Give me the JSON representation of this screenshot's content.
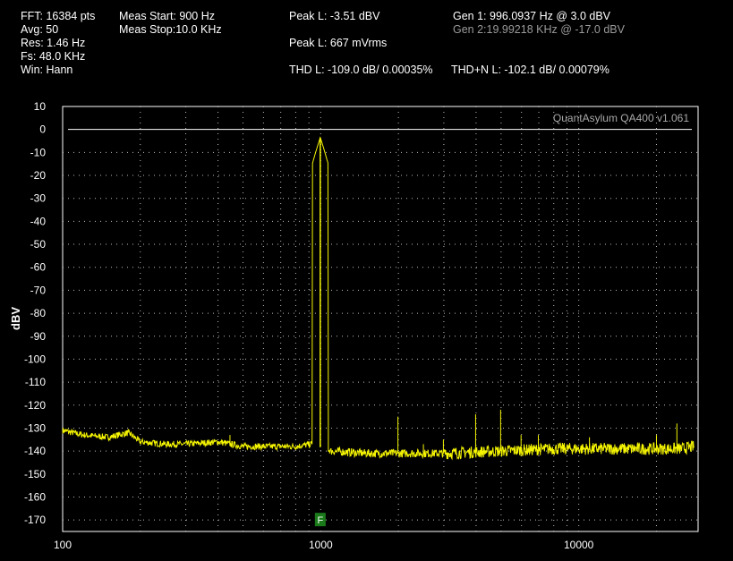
{
  "header": {
    "col1": [
      "FFT: 16384 pts",
      "Avg: 50",
      "Res: 1.46 Hz",
      "Fs: 48.0 KHz",
      "Win: Hann"
    ],
    "col2": [
      "Meas Start: 900 Hz",
      "Meas Stop:10.0 KHz"
    ],
    "peak_dbv": "Peak L: -3.51 dBV",
    "peak_mv": "Peak L: 667 mVrms",
    "thd": "THD L: -109.0 dB/ 0.00035%",
    "thdn": "THD+N L: -102.1 dB/ 0.00079%",
    "gen1": "Gen 1: 996.0937 Hz @ 3.0  dBV",
    "gen2": "Gen 2:19.99218 KHz @ -17.0  dBV"
  },
  "colors": {
    "trace": "#f5f500",
    "grid": "#bdbdbd",
    "marker": "#1a7a1a"
  },
  "chart_data": {
    "type": "line",
    "title": "",
    "watermark": "QuantAsylum QA400 v1.061",
    "ylabel": "dBV",
    "xlabel": "",
    "xscale": "log",
    "xlim": [
      100,
      29000
    ],
    "ylim": [
      -175,
      10
    ],
    "grid": true,
    "reference_line_y": 0,
    "x_tick_labels": [
      "100",
      "1000",
      "10000"
    ],
    "x_tick_values": [
      100,
      1000,
      10000
    ],
    "y_ticks": [
      10,
      0,
      -10,
      -20,
      -30,
      -40,
      -50,
      -60,
      -70,
      -80,
      -90,
      -100,
      -110,
      -120,
      -130,
      -140,
      -150,
      -160,
      -170
    ],
    "marker": {
      "label": "F",
      "x": 996,
      "y": -170
    },
    "series": [
      {
        "noise_floor": [
          [
            100,
            -131
          ],
          [
            120,
            -133
          ],
          [
            150,
            -134
          ],
          [
            180,
            -132
          ],
          [
            200,
            -136
          ],
          [
            250,
            -137
          ],
          [
            300,
            -137
          ],
          [
            400,
            -136
          ],
          [
            500,
            -138
          ],
          [
            600,
            -138
          ],
          [
            800,
            -138
          ],
          [
            920,
            -137
          ],
          [
            1100,
            -140
          ],
          [
            1500,
            -141
          ],
          [
            2000,
            -141
          ],
          [
            3000,
            -141
          ],
          [
            5000,
            -140
          ],
          [
            8000,
            -139
          ],
          [
            12000,
            -139
          ],
          [
            20000,
            -139
          ],
          [
            25000,
            -139
          ],
          [
            28000,
            -138
          ]
        ],
        "peaks": [
          {
            "x": 996,
            "y": -3.5
          },
          {
            "x": 180,
            "y": -131
          },
          {
            "x": 445,
            "y": -133
          },
          {
            "x": 1992,
            "y": -125
          },
          {
            "x": 2988,
            "y": -135
          },
          {
            "x": 2500,
            "y": -137
          },
          {
            "x": 3984,
            "y": -124
          },
          {
            "x": 4980,
            "y": -122
          },
          {
            "x": 5976,
            "y": -133
          },
          {
            "x": 6972,
            "y": -133
          },
          {
            "x": 11000,
            "y": -134
          },
          {
            "x": 20000,
            "y": -133
          },
          {
            "x": 24000,
            "y": -128
          }
        ]
      }
    ]
  }
}
